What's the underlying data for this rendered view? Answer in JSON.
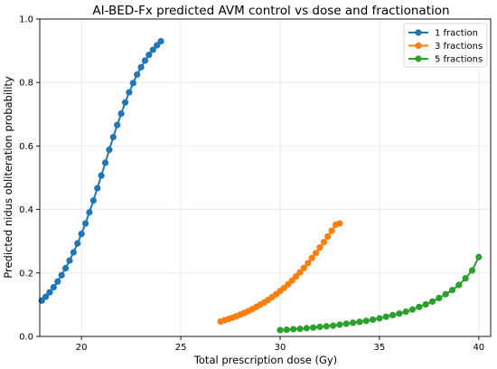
{
  "chart_data": {
    "type": "line",
    "title": "AI-BED-Fx predicted AVM control vs dose and fractionation",
    "xlabel": "Total prescription dose (Gy)",
    "ylabel": "Predicted nidus obliteration probability",
    "xlim": [
      17.9,
      40.6
    ],
    "ylim": [
      0.0,
      1.0
    ],
    "xticks": [
      20,
      25,
      30,
      35,
      40
    ],
    "yticks": [
      0.0,
      0.2,
      0.4,
      0.6,
      0.8,
      1.0
    ],
    "xtick_labels": [
      "20",
      "25",
      "30",
      "35",
      "40"
    ],
    "ytick_labels": [
      "0.0",
      "0.2",
      "0.4",
      "0.6",
      "0.8",
      "1.0"
    ],
    "grid": true,
    "legend_position": "top-right",
    "series": [
      {
        "name": "1 fraction",
        "color": "#1f77b4",
        "x": [
          18.0,
          18.2,
          18.4,
          18.6,
          18.8,
          19.0,
          19.2,
          19.4,
          19.6,
          19.8,
          20.0,
          20.2,
          20.4,
          20.6,
          20.8,
          21.0,
          21.2,
          21.4,
          21.6,
          21.8,
          22.0,
          22.2,
          22.4,
          22.6,
          22.8,
          23.0,
          23.2,
          23.4,
          23.6,
          23.8,
          24.0
        ],
        "values": [
          0.113,
          0.125,
          0.139,
          0.155,
          0.173,
          0.193,
          0.215,
          0.239,
          0.265,
          0.293,
          0.323,
          0.356,
          0.391,
          0.428,
          0.467,
          0.507,
          0.547,
          0.588,
          0.628,
          0.666,
          0.702,
          0.737,
          0.769,
          0.798,
          0.825,
          0.848,
          0.869,
          0.887,
          0.903,
          0.917,
          0.93
        ]
      },
      {
        "name": "3 fractions",
        "color": "#ff7f0e",
        "x": [
          27.0,
          27.2,
          27.4,
          27.6,
          27.8,
          28.0,
          28.2,
          28.4,
          28.6,
          28.8,
          29.0,
          29.2,
          29.4,
          29.6,
          29.8,
          30.0,
          30.2,
          30.4,
          30.6,
          30.8,
          31.0,
          31.2,
          31.4,
          31.6,
          31.8,
          32.0,
          32.2,
          32.4,
          32.6,
          32.8,
          33.0
        ],
        "values": [
          0.047,
          0.051,
          0.055,
          0.059,
          0.064,
          0.069,
          0.074,
          0.08,
          0.086,
          0.093,
          0.1,
          0.107,
          0.115,
          0.124,
          0.133,
          0.143,
          0.153,
          0.164,
          0.176,
          0.189,
          0.202,
          0.216,
          0.231,
          0.247,
          0.263,
          0.28,
          0.297,
          0.315,
          0.333,
          0.352,
          0.356
        ]
      },
      {
        "name": "5 fractions",
        "color": "#2ca02c",
        "x": [
          30.0,
          30.333,
          30.667,
          31.0,
          31.333,
          31.667,
          32.0,
          32.333,
          32.667,
          33.0,
          33.333,
          33.667,
          34.0,
          34.333,
          34.667,
          35.0,
          35.333,
          35.667,
          36.0,
          36.333,
          36.667,
          37.0,
          37.333,
          37.667,
          38.0,
          38.333,
          38.667,
          39.0,
          39.333,
          39.667,
          40.0
        ],
        "values": [
          0.02,
          0.021,
          0.023,
          0.024,
          0.026,
          0.028,
          0.03,
          0.032,
          0.034,
          0.037,
          0.04,
          0.043,
          0.046,
          0.049,
          0.053,
          0.057,
          0.062,
          0.067,
          0.072,
          0.078,
          0.085,
          0.093,
          0.101,
          0.11,
          0.121,
          0.133,
          0.146,
          0.162,
          0.183,
          0.208,
          0.25
        ]
      }
    ]
  }
}
